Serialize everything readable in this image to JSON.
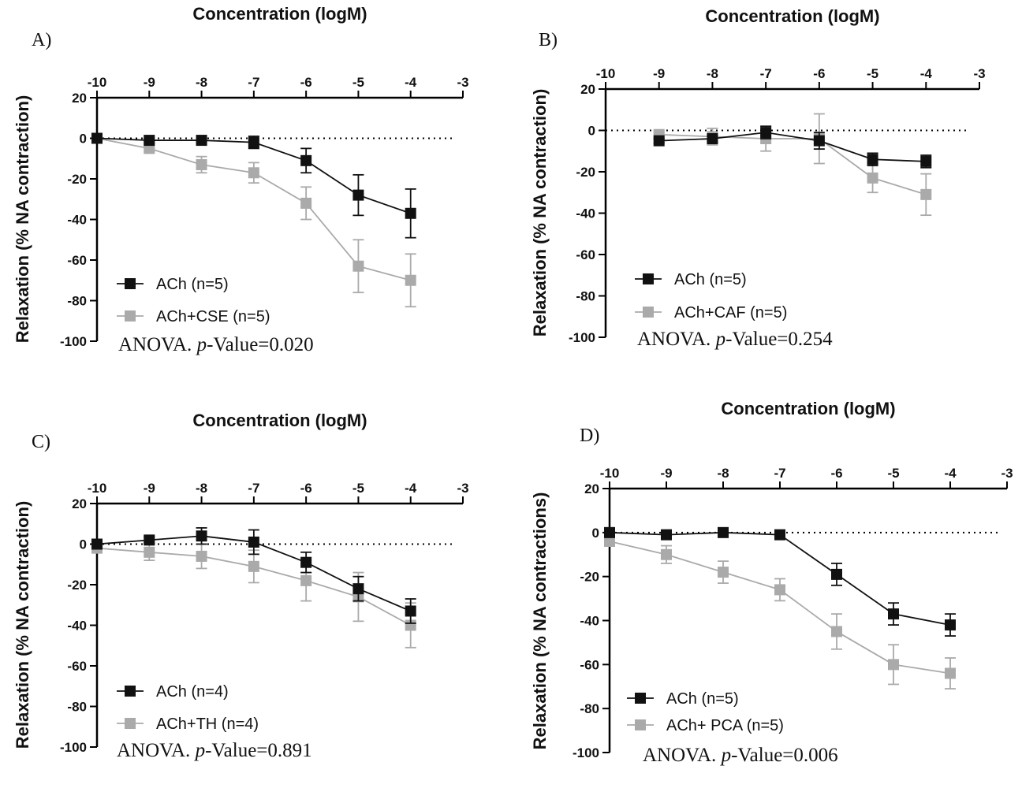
{
  "chart_data": [
    {
      "type": "line",
      "panel_label": "A)",
      "title": "Concentration (logM)",
      "xlabel": "Concentration (logM)",
      "ylabel": "Relaxation (% NA contraction)",
      "xlim": [
        -10,
        -3
      ],
      "ylim": [
        -100,
        20
      ],
      "x_ticks": [
        "-10",
        "-9",
        "-8",
        "-7",
        "-6",
        "-5",
        "-4",
        "-3"
      ],
      "y_ticks": [
        "20",
        "0",
        "-20",
        "-40",
        "-60",
        "-80",
        "-100"
      ],
      "series": [
        {
          "name": "ACh (n=5)",
          "color": "#111111",
          "x": [
            -10,
            -9,
            -8,
            -7,
            -6,
            -5,
            -4
          ],
          "values": [
            0,
            -1,
            -1,
            -2,
            -11,
            -28,
            -37
          ],
          "errors": [
            0,
            1,
            1,
            3,
            6,
            10,
            12
          ]
        },
        {
          "name": "ACh+CSE (n=5)",
          "color": "#aaaaaa",
          "x": [
            -10,
            -9,
            -8,
            -7,
            -6,
            -5,
            -4
          ],
          "values": [
            0,
            -5,
            -13,
            -17,
            -32,
            -63,
            -70
          ],
          "errors": [
            0,
            1.5,
            4,
            5,
            8,
            13,
            13
          ]
        }
      ],
      "annotation": {
        "prefix": "ANOVA. ",
        "italic": "p",
        "suffix": "-Value=0.020"
      }
    },
    {
      "type": "line",
      "panel_label": "B)",
      "title": "Concentration (logM)",
      "xlabel": "Concentration (logM)",
      "ylabel": "Relaxation (% NA contraction)",
      "xlim": [
        -10,
        -3
      ],
      "ylim": [
        -100,
        20
      ],
      "x_ticks": [
        "-10",
        "-9",
        "-8",
        "-7",
        "-6",
        "-5",
        "-4",
        "-3"
      ],
      "y_ticks": [
        "20",
        "0",
        "-20",
        "-40",
        "-60",
        "-80",
        "-100"
      ],
      "series": [
        {
          "name": "ACh (n=5)",
          "color": "#111111",
          "x": [
            -9,
            -8,
            -7,
            -6,
            -5,
            -4
          ],
          "values": [
            -5,
            -4,
            -1,
            -5,
            -14,
            -15
          ],
          "errors": [
            1,
            1.5,
            3,
            4,
            3,
            3
          ]
        },
        {
          "name": "ACh+CAF (n=5)",
          "color": "#aaaaaa",
          "x": [
            -9,
            -8,
            -7,
            -6,
            -5,
            -4
          ],
          "values": [
            -2,
            -3,
            -4,
            -4,
            -23,
            -31
          ],
          "errors": [
            1,
            4,
            6,
            12,
            7,
            10
          ]
        }
      ],
      "annotation": {
        "prefix": "ANOVA. ",
        "italic": "p",
        "suffix": "-Value=0.254"
      }
    },
    {
      "type": "line",
      "panel_label": "C)",
      "title": "Concentration (logM)",
      "xlabel": "Concentration (logM)",
      "ylabel": "Relaxation (% NA contraction)",
      "xlim": [
        -10,
        -3
      ],
      "ylim": [
        -100,
        20
      ],
      "x_ticks": [
        "-10",
        "-9",
        "-8",
        "-7",
        "-6",
        "-5",
        "-4",
        "-3"
      ],
      "y_ticks": [
        "20",
        "0",
        "-20",
        "-40",
        "-60",
        "-80",
        "-100"
      ],
      "series": [
        {
          "name": "ACh (n=4)",
          "color": "#111111",
          "x": [
            -10,
            -9,
            -8,
            -7,
            -6,
            -5,
            -4
          ],
          "values": [
            0,
            2,
            4,
            1,
            -9,
            -22,
            -33
          ],
          "errors": [
            0,
            1.5,
            4,
            6,
            5,
            6,
            6
          ]
        },
        {
          "name": "ACh+TH (n=4)",
          "color": "#aaaaaa",
          "x": [
            -10,
            -9,
            -8,
            -7,
            -6,
            -5,
            -4
          ],
          "values": [
            -2,
            -4,
            -6,
            -11,
            -18,
            -26,
            -40
          ],
          "errors": [
            0.5,
            4,
            6,
            8,
            10,
            12,
            11
          ]
        }
      ],
      "annotation": {
        "prefix": "ANOVA. ",
        "italic": "p",
        "suffix": "-Value=0.891"
      }
    },
    {
      "type": "line",
      "panel_label": "D)",
      "title": "Concentration (logM)",
      "xlabel": "Concentration (logM)",
      "ylabel": "Relaxation (% NA contractions)",
      "xlim": [
        -10,
        -3
      ],
      "ylim": [
        -100,
        20
      ],
      "x_ticks": [
        "-10",
        "-9",
        "-8",
        "-7",
        "-6",
        "-5",
        "-4",
        "-3"
      ],
      "y_ticks": [
        "20",
        "0",
        "-20",
        "-40",
        "-60",
        "-80",
        "-100"
      ],
      "series": [
        {
          "name": "ACh (n=5)",
          "color": "#111111",
          "x": [
            -10,
            -9,
            -8,
            -7,
            -6,
            -5,
            -4
          ],
          "values": [
            0,
            -1,
            0,
            -1,
            -19,
            -37,
            -42
          ],
          "errors": [
            0,
            1,
            1,
            1,
            5,
            5,
            5
          ]
        },
        {
          "name": "ACh+ PCA (n=5)",
          "color": "#aaaaaa",
          "x": [
            -10,
            -9,
            -8,
            -7,
            -6,
            -5,
            -4
          ],
          "values": [
            -4,
            -10,
            -18,
            -26,
            -45,
            -60,
            -64
          ],
          "errors": [
            1,
            4,
            5,
            5,
            8,
            9,
            7
          ]
        }
      ],
      "annotation": {
        "prefix": "ANOVA. ",
        "italic": "p",
        "suffix": "-Value=0.006"
      }
    }
  ]
}
